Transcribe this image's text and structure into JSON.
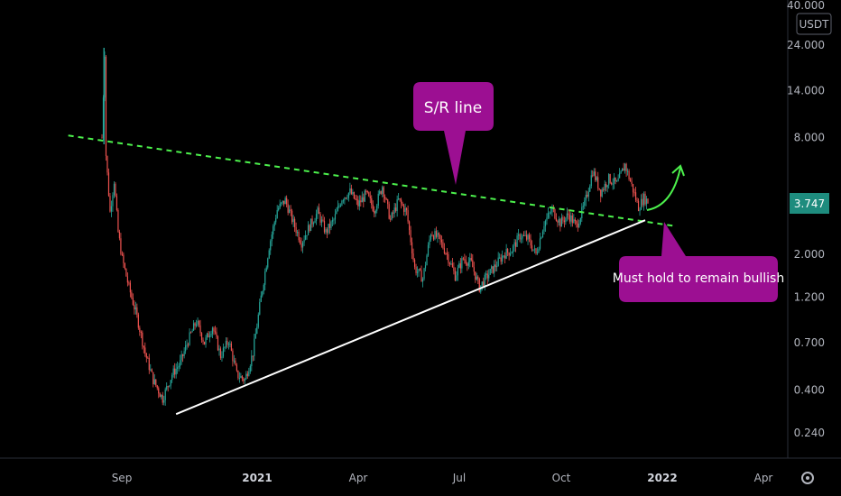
{
  "chart_data": {
    "type": "candlestick",
    "title": "",
    "currency_label": "USDT",
    "scale": "log",
    "ylim": [
      0.2,
      42
    ],
    "last_price": 3.747,
    "last_price_label": "3.747",
    "y_ticks": [
      {
        "value": 40,
        "label": "40.000"
      },
      {
        "value": 24,
        "label": "24.000"
      },
      {
        "value": 14,
        "label": "14.000"
      },
      {
        "value": 8,
        "label": "8.000"
      },
      {
        "value": 2,
        "label": "2.000"
      },
      {
        "value": 1.2,
        "label": "1.200"
      },
      {
        "value": 0.7,
        "label": "0.700"
      },
      {
        "value": 0.4,
        "label": "0.400"
      },
      {
        "value": 0.24,
        "label": "0.240"
      }
    ],
    "x_ticks": [
      {
        "label": "Sep",
        "strong": false
      },
      {
        "label": "2021",
        "strong": true
      },
      {
        "label": "Apr",
        "strong": false
      },
      {
        "label": "Jul",
        "strong": false
      },
      {
        "label": "Oct",
        "strong": false
      },
      {
        "label": "2022",
        "strong": true
      },
      {
        "label": "Apr",
        "strong": false
      }
    ],
    "price_path": [
      [
        0,
        8
      ],
      [
        2,
        22
      ],
      [
        3,
        6.5
      ],
      [
        6,
        3.3
      ],
      [
        9,
        4.8
      ],
      [
        12,
        2.6
      ],
      [
        15,
        1.9
      ],
      [
        20,
        1.35
      ],
      [
        26,
        0.95
      ],
      [
        32,
        0.62
      ],
      [
        38,
        0.45
      ],
      [
        45,
        0.36
      ],
      [
        52,
        0.48
      ],
      [
        58,
        0.55
      ],
      [
        64,
        0.72
      ],
      [
        70,
        0.9
      ],
      [
        76,
        0.7
      ],
      [
        82,
        0.85
      ],
      [
        88,
        0.6
      ],
      [
        94,
        0.72
      ],
      [
        100,
        0.48
      ],
      [
        106,
        0.45
      ],
      [
        112,
        0.62
      ],
      [
        118,
        1.2
      ],
      [
        124,
        2.2
      ],
      [
        130,
        3.4
      ],
      [
        136,
        3.8
      ],
      [
        142,
        2.9
      ],
      [
        148,
        2.3
      ],
      [
        154,
        2.8
      ],
      [
        160,
        3.3
      ],
      [
        166,
        2.6
      ],
      [
        172,
        3.0
      ],
      [
        178,
        3.9
      ],
      [
        184,
        4.2
      ],
      [
        190,
        3.6
      ],
      [
        196,
        4.1
      ],
      [
        202,
        3.4
      ],
      [
        208,
        4.5
      ],
      [
        214,
        3.0
      ],
      [
        220,
        3.8
      ],
      [
        226,
        3.3
      ],
      [
        232,
        1.7
      ],
      [
        238,
        1.5
      ],
      [
        244,
        2.6
      ],
      [
        250,
        2.4
      ],
      [
        256,
        2.0
      ],
      [
        262,
        1.55
      ],
      [
        268,
        1.9
      ],
      [
        274,
        1.8
      ],
      [
        280,
        1.35
      ],
      [
        286,
        1.55
      ],
      [
        292,
        1.75
      ],
      [
        298,
        2.0
      ],
      [
        304,
        2.1
      ],
      [
        310,
        2.5
      ],
      [
        316,
        2.4
      ],
      [
        322,
        2.0
      ],
      [
        328,
        2.9
      ],
      [
        334,
        3.4
      ],
      [
        340,
        2.9
      ],
      [
        346,
        3.2
      ],
      [
        352,
        2.8
      ],
      [
        358,
        3.6
      ],
      [
        364,
        5.4
      ],
      [
        370,
        4.2
      ],
      [
        376,
        4.9
      ],
      [
        382,
        4.6
      ],
      [
        388,
        5.8
      ],
      [
        394,
        4.3
      ],
      [
        398,
        3.5
      ],
      [
        402,
        3.9
      ],
      [
        405,
        3.747
      ]
    ],
    "lines": {
      "resistance": [
        [
          -25,
          8.2
        ],
        [
          425,
          2.8
        ]
      ],
      "support": [
        [
          55,
          0.3
        ],
        [
          403,
          3.0
        ]
      ]
    },
    "annotations": [
      {
        "name": "resistance-callout",
        "text": "S/R line"
      },
      {
        "name": "support-callout",
        "text": "Must hold to remain bullish"
      }
    ],
    "colors": {
      "up": "#26a69a",
      "down": "#ef5350",
      "resistance": "#4cf04c",
      "support": "#ffffff",
      "callout": "#9c0f92",
      "arrow": "#4cf04c",
      "price_tag": "#1e8c7e"
    }
  }
}
